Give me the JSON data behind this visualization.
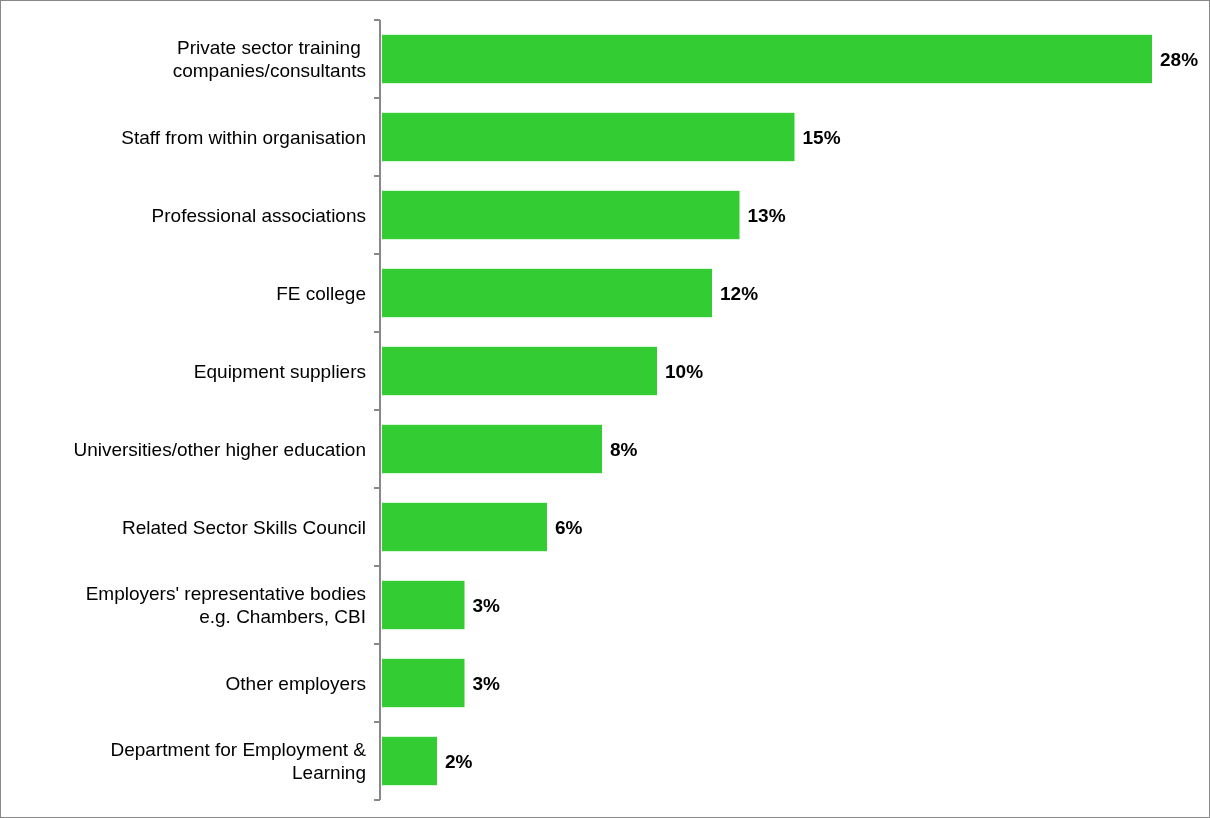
{
  "chart_data": {
    "type": "bar",
    "orientation": "horizontal",
    "data_labels": true,
    "color": "#33cc33",
    "categories": [
      "Private sector training \ncompanies/consultants",
      "Staff from within organisation",
      "Professional associations",
      "FE college",
      "Equipment suppliers",
      "Universities/other higher education",
      "Related Sector Skills Council",
      "Employers' representative bodies\ne.g. Chambers, CBI",
      "Other employers",
      "Department for Employment &\nLearning"
    ],
    "values": [
      28,
      15,
      13,
      12,
      10,
      8,
      6,
      3,
      3,
      2
    ],
    "value_labels": [
      "28%",
      "15%",
      "13%",
      "12%",
      "10%",
      "8%",
      "6%",
      "3%",
      "3%",
      "2%"
    ],
    "xlim": [
      0,
      28
    ]
  }
}
